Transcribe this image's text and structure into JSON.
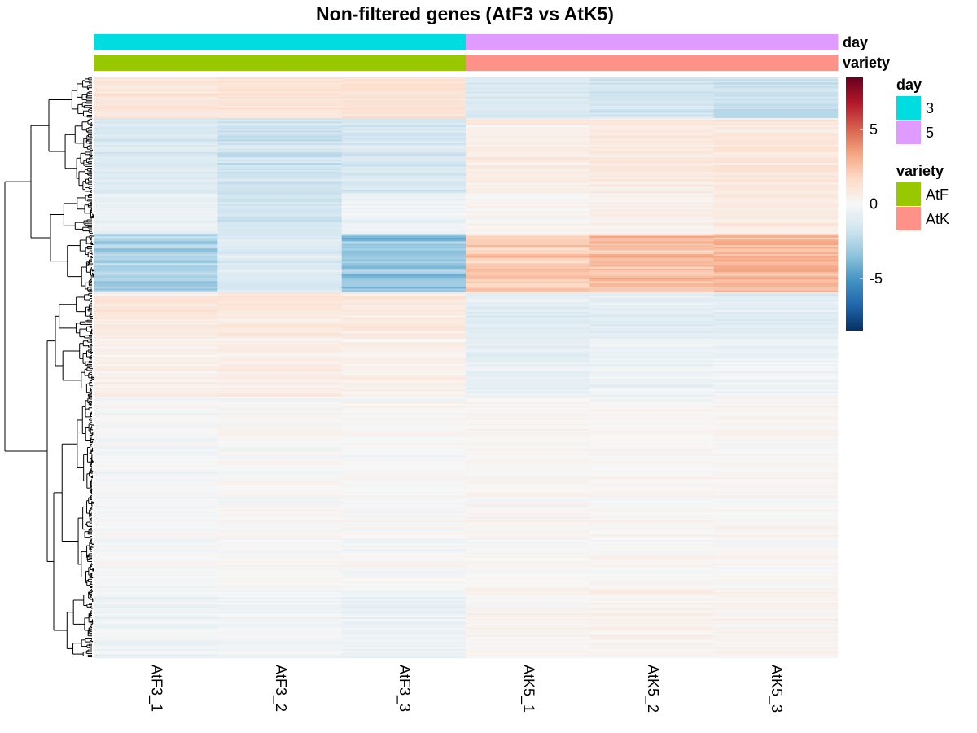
{
  "chart_data": {
    "type": "heatmap",
    "title": "Non-filtered genes (AtF3 vs AtK5)",
    "columns": [
      "AtF3_1",
      "AtF3_2",
      "AtF3_3",
      "AtK5_1",
      "AtK5_2",
      "AtK5_3"
    ],
    "column_annotations": [
      {
        "name": "day",
        "values": [
          "3",
          "3",
          "3",
          "5",
          "5",
          "5"
        ]
      },
      {
        "name": "variety",
        "values": [
          "AtF",
          "AtF",
          "AtF",
          "AtK",
          "AtK",
          "AtK"
        ]
      }
    ],
    "annotation_legends": [
      {
        "title": "day",
        "items": [
          {
            "label": "3",
            "color": "#00DDE0"
          },
          {
            "label": "5",
            "color": "#DF9BFF"
          }
        ]
      },
      {
        "title": "variety",
        "items": [
          {
            "label": "AtF",
            "color": "#98C800"
          },
          {
            "label": "AtK",
            "color": "#FF9288"
          }
        ]
      }
    ],
    "color_scale": {
      "range": [
        -8.5,
        8.5
      ],
      "ticks": [
        "5",
        "0",
        "-5"
      ],
      "tick_values": [
        5,
        0,
        -5
      ],
      "colors": [
        "#053061",
        "#2166AC",
        "#4393C3",
        "#92C5DE",
        "#D1E5F0",
        "#F7F7F7",
        "#FDDBC7",
        "#F4A582",
        "#D6604D",
        "#B2182B",
        "#67001F"
      ]
    },
    "row_clusters": [
      {
        "fraction": 0.07,
        "values": [
          1.0,
          1.1,
          1.2,
          -1.2,
          -1.6,
          -2.0
        ]
      },
      {
        "fraction": 0.13,
        "values": [
          -1.3,
          -1.8,
          -1.5,
          0.6,
          0.8,
          1.0
        ]
      },
      {
        "fraction": 0.07,
        "values": [
          -0.6,
          -1.6,
          -0.4,
          0.2,
          0.4,
          0.8
        ]
      },
      {
        "fraction": 0.1,
        "values": [
          -2.8,
          -1.2,
          -3.4,
          2.2,
          2.6,
          2.8
        ]
      },
      {
        "fraction": 0.08,
        "values": [
          0.8,
          0.9,
          0.8,
          -1.1,
          -0.9,
          -1.0
        ]
      },
      {
        "fraction": 0.1,
        "values": [
          0.4,
          0.6,
          0.4,
          -0.7,
          -0.5,
          -0.4
        ]
      },
      {
        "fraction": 0.33,
        "values": [
          -0.1,
          0.0,
          0.0,
          0.1,
          0.1,
          0.1
        ]
      },
      {
        "fraction": 0.12,
        "values": [
          -0.4,
          -0.3,
          -0.5,
          0.2,
          0.3,
          0.3
        ]
      }
    ]
  }
}
